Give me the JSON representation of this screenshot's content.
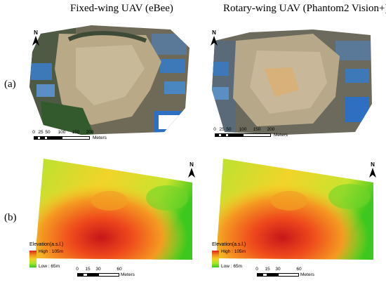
{
  "titles": {
    "left": "Fixed-wing UAV (eBee)",
    "right": "Rotary-wing UAV (Phantom2 Vision+)"
  },
  "row_labels": {
    "a": "(a)",
    "b": "(b)"
  },
  "north_label": "N",
  "north_icon": "north-arrow-icon",
  "scale_top": {
    "ticks": [
      "0",
      "25",
      "50",
      "100",
      "150",
      "200"
    ],
    "unit": "Meters"
  },
  "scale_bottom": {
    "ticks": [
      "0",
      "15",
      "30",
      "60"
    ],
    "unit": "Meters"
  },
  "legend": {
    "title": "Elevation(a.s.l.)",
    "high": "High : 105m",
    "low": "Low : 65m",
    "colors": [
      "#d9241c",
      "#f28a1e",
      "#f2d020",
      "#a8e62a",
      "#35c81e"
    ]
  }
}
